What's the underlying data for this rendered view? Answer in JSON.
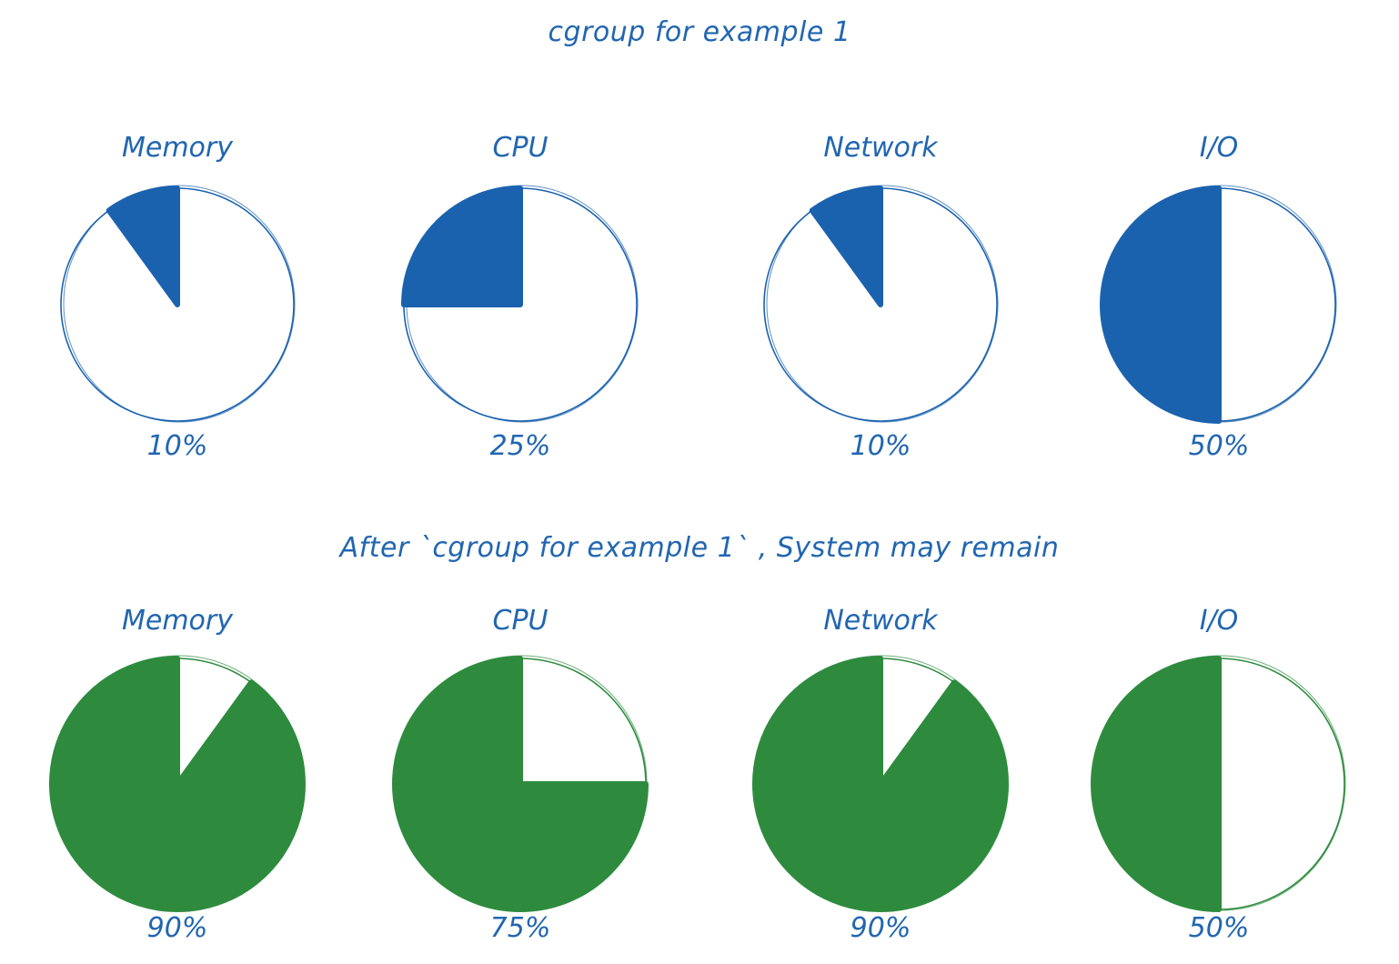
{
  "colors": {
    "blue": "#1b62ae",
    "green": "#2e8b3e",
    "text_blue": "#2166b0"
  },
  "chart_data": [
    {
      "type": "pie",
      "title": "cgroup for example 1",
      "categories": [
        "Memory",
        "CPU",
        "Network",
        "I/O"
      ],
      "values": [
        10,
        25,
        10,
        50
      ],
      "value_labels": [
        "10%",
        "25%",
        "10%",
        "50%"
      ],
      "unit": "%",
      "color": "#1b62ae"
    },
    {
      "type": "pie",
      "title": "After `cgroup for example 1` , System may remain",
      "categories": [
        "Memory",
        "CPU",
        "Network",
        "I/O"
      ],
      "values": [
        90,
        75,
        90,
        50
      ],
      "value_labels": [
        "90%",
        "75%",
        "90%",
        "50%"
      ],
      "unit": "%",
      "color": "#2e8b3e"
    }
  ]
}
